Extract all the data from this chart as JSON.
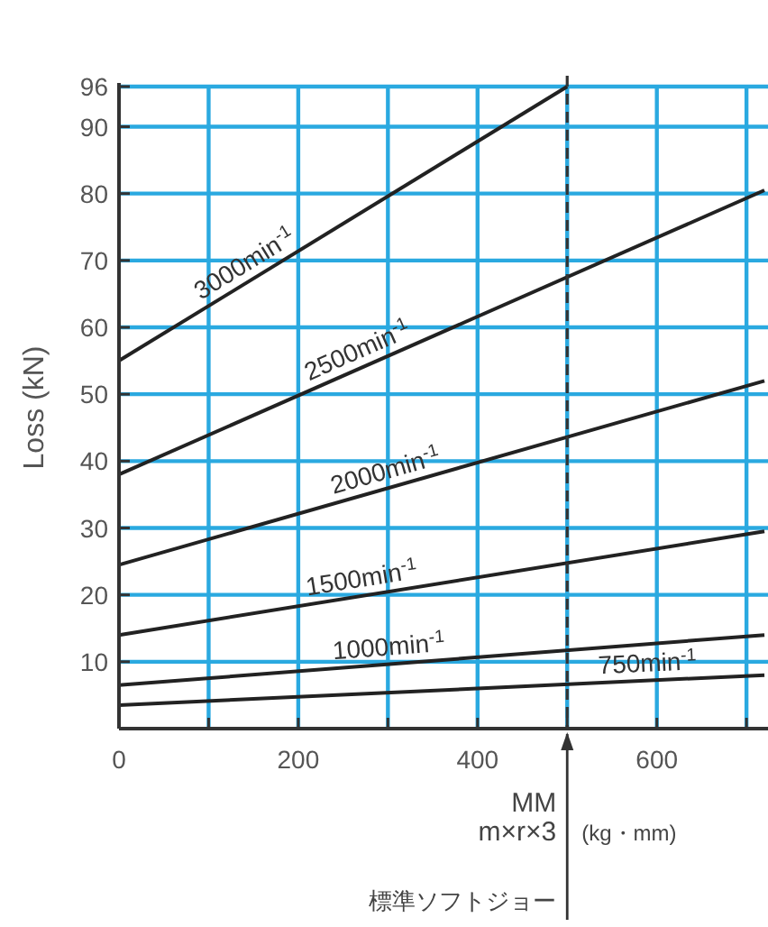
{
  "chart_data": {
    "type": "line",
    "x": [
      0,
      720
    ],
    "series": [
      {
        "name": "3000min$^{-1}$",
        "color": "#222222",
        "x": [
          0,
          500
        ],
        "values": [
          55,
          96
        ]
      },
      {
        "name": "2500min$^{-1}$",
        "color": "#222222",
        "values": [
          38,
          80.5
        ]
      },
      {
        "name": "2000min$^{-1}$",
        "color": "#222222",
        "values": [
          24.5,
          52
        ]
      },
      {
        "name": "1500min$^{-1}$",
        "color": "#222222",
        "values": [
          14,
          29.5
        ]
      },
      {
        "name": "1000min$^{-1}$",
        "color": "#222222",
        "values": [
          6.5,
          14
        ]
      },
      {
        "name": "750min$^{-1}$",
        "color": "#222222",
        "values": [
          3.5,
          8
        ]
      }
    ],
    "xlabel": "MM m×r×3",
    "ylabel": "Loss (kN)",
    "annotations": [
      "(kg・mm)"
    ],
    "xlim": [
      0,
      724
    ],
    "ylim": [
      0,
      96
    ],
    "xticks": [
      0,
      {
        "value": 100,
        "label": null
      },
      200,
      {
        "value": 300,
        "label": null
      },
      400,
      {
        "value": 500,
        "label": null
      },
      600,
      {
        "value": 700,
        "label": null
      }
    ],
    "yticks": [
      10,
      20,
      30,
      40,
      50,
      60,
      70,
      80,
      90,
      96
    ],
    "ref_lines": [
      {
        "axis": "x",
        "value": 500,
        "label": "標準ソフトジョー",
        "line_style": "dashed",
        "color": "#333333"
      }
    ],
    "grid": true,
    "marker": "none",
    "line_style": "solid"
  }
}
